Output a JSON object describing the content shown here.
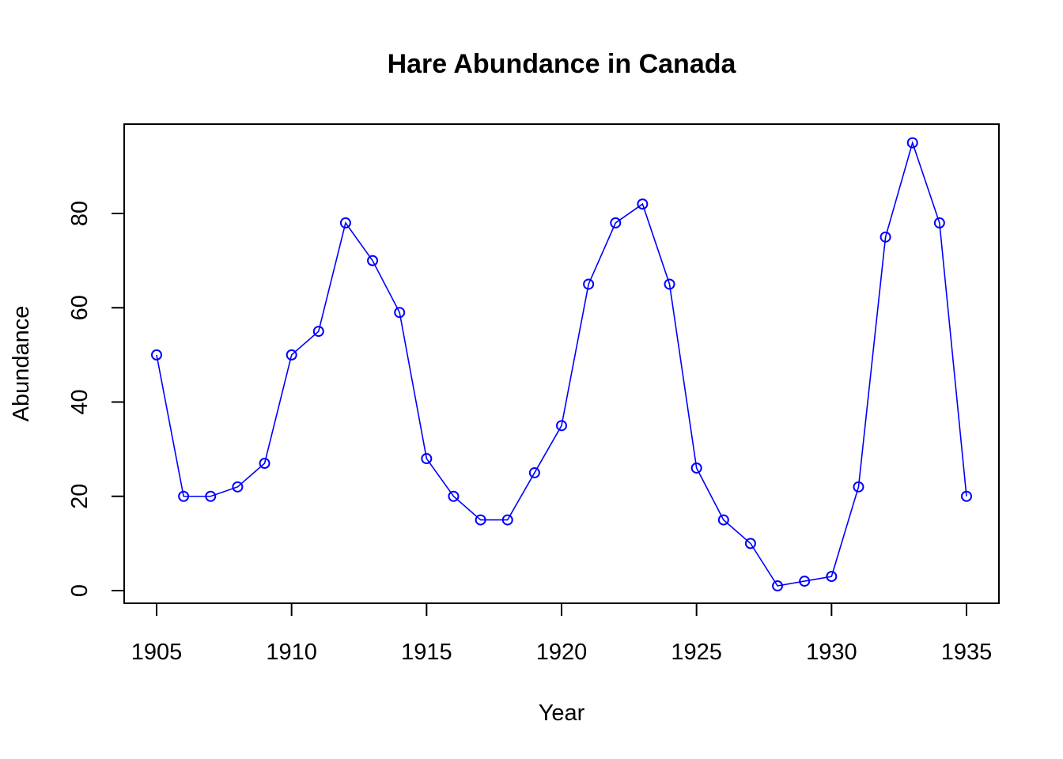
{
  "chart_data": {
    "type": "line",
    "title": "Hare Abundance in Canada",
    "xlabel": "Year",
    "ylabel": "Abundance",
    "xlim": [
      1905,
      1935
    ],
    "ylim": [
      0,
      95
    ],
    "x_ticks": [
      1905,
      1910,
      1915,
      1920,
      1925,
      1930,
      1935
    ],
    "y_ticks": [
      0,
      20,
      40,
      60,
      80
    ],
    "grid": false,
    "color": "#0000ff",
    "marker": "open-circle",
    "series": [
      {
        "x": [
          1905,
          1906,
          1907,
          1908,
          1909,
          1910,
          1911,
          1912,
          1913,
          1914,
          1915,
          1916,
          1917,
          1918,
          1919,
          1920,
          1921,
          1922,
          1923,
          1924,
          1925,
          1926,
          1927,
          1928,
          1929,
          1930,
          1931,
          1932,
          1933,
          1934,
          1935
        ],
        "values": [
          50,
          20,
          20,
          22,
          27,
          50,
          55,
          78,
          70,
          59,
          28,
          20,
          15,
          15,
          25,
          35,
          65,
          78,
          82,
          65,
          26,
          15,
          10,
          1,
          2,
          3,
          22,
          75,
          95,
          78,
          20
        ]
      }
    ]
  }
}
